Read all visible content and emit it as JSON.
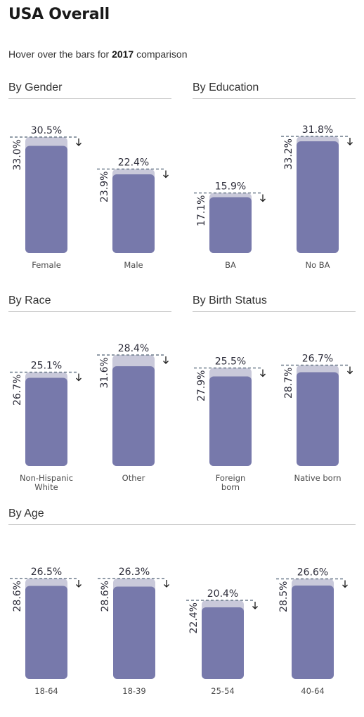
{
  "title": "USA Overall",
  "subtitle": {
    "prefix": "Hover over the bars for ",
    "year": "2017",
    "suffix": " comparison"
  },
  "colors": {
    "bar_current": "#7779ab",
    "bar_previous": "#c9c9da",
    "ref_line": "#6b7a8a",
    "arrow": "#1a1a1a"
  },
  "chart_data": [
    {
      "type": "bar",
      "title": "By Gender",
      "ylim": [
        0,
        40
      ],
      "categories": [
        "Female",
        "Male"
      ],
      "series": [
        {
          "name": "",
          "values": [
            30.5,
            22.4
          ]
        },
        {
          "name": "2017",
          "values": [
            33.0,
            23.9
          ]
        }
      ],
      "value_labels": [
        "30.5%",
        "22.4%"
      ],
      "comparison_labels": [
        "33.0%",
        "23.9%"
      ]
    },
    {
      "type": "bar",
      "title": "By Education",
      "ylim": [
        0,
        40
      ],
      "categories": [
        "BA",
        "No BA"
      ],
      "series": [
        {
          "name": "",
          "values": [
            15.9,
            31.8
          ]
        },
        {
          "name": "2017",
          "values": [
            17.1,
            33.2
          ]
        }
      ],
      "value_labels": [
        "15.9%",
        "31.8%"
      ],
      "comparison_labels": [
        "17.1%",
        "33.2%"
      ]
    },
    {
      "type": "bar",
      "title": "By Race",
      "ylim": [
        0,
        40
      ],
      "categories": [
        "Non-Hispanic White",
        "Other"
      ],
      "series": [
        {
          "name": "",
          "values": [
            25.1,
            28.4
          ]
        },
        {
          "name": "2017",
          "values": [
            26.7,
            31.6
          ]
        }
      ],
      "value_labels": [
        "25.1%",
        "28.4%"
      ],
      "comparison_labels": [
        "26.7%",
        "31.6%"
      ]
    },
    {
      "type": "bar",
      "title": "By Birth Status",
      "ylim": [
        0,
        40
      ],
      "categories": [
        "Foreign born",
        "Native born"
      ],
      "series": [
        {
          "name": "",
          "values": [
            25.5,
            26.7
          ]
        },
        {
          "name": "2017",
          "values": [
            27.9,
            28.7
          ]
        }
      ],
      "value_labels": [
        "25.5%",
        "26.7%"
      ],
      "comparison_labels": [
        "27.9%",
        "28.7%"
      ]
    },
    {
      "type": "bar",
      "title": "By Age",
      "ylim": [
        0,
        40
      ],
      "categories": [
        "18-64",
        "18-39",
        "25-54",
        "40-64"
      ],
      "series": [
        {
          "name": "",
          "values": [
            26.5,
            26.3,
            20.4,
            26.6
          ]
        },
        {
          "name": "2017",
          "values": [
            28.6,
            28.6,
            22.4,
            28.5
          ]
        }
      ],
      "value_labels": [
        "26.5%",
        "26.3%",
        "20.4%",
        "26.6%"
      ],
      "comparison_labels": [
        "28.6%",
        "28.6%",
        "22.4%",
        "28.5%"
      ]
    }
  ]
}
